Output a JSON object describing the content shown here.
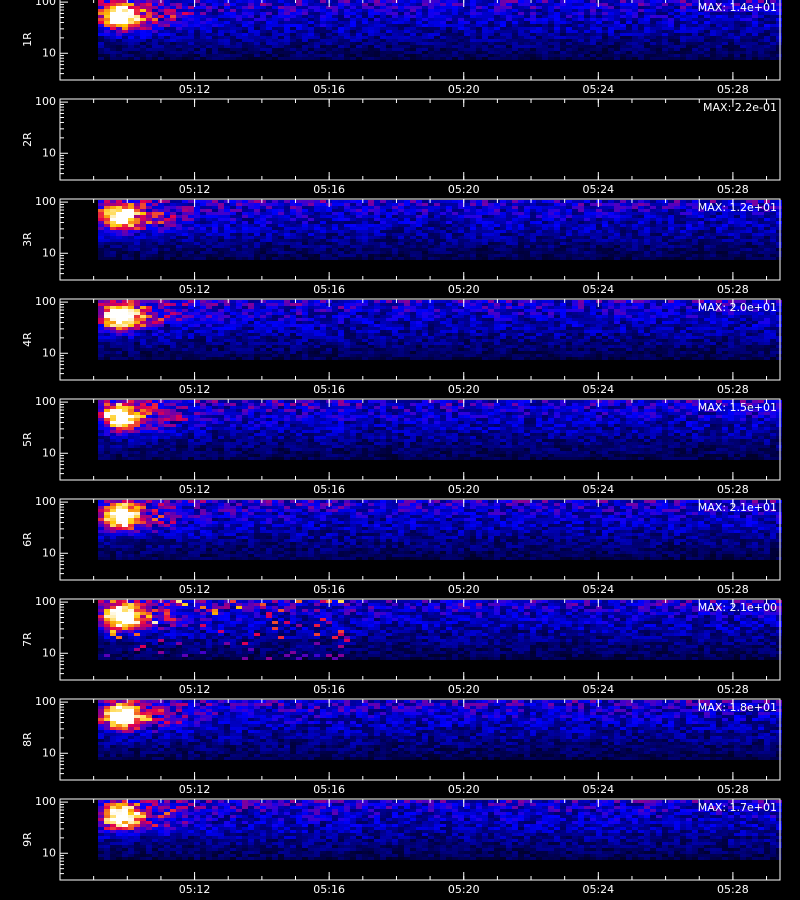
{
  "chart_data": [
    {
      "type": "heatmap",
      "ylabel": "1R",
      "annotation": "MAX: 1.4e+01",
      "log_y": true,
      "ylim": [
        3,
        115
      ],
      "yticks": [
        10,
        100
      ],
      "xlim": [
        308,
        329.4
      ],
      "xticks": [
        {
          "value": 312,
          "label": "05:12"
        },
        {
          "value": 316,
          "label": "05:16"
        },
        {
          "value": 320,
          "label": "05:20"
        },
        {
          "value": 324,
          "label": "05:24"
        },
        {
          "value": 328,
          "label": "05:28"
        }
      ]
    },
    {
      "type": "heatmap",
      "ylabel": "2R",
      "annotation": "MAX: 2.2e-01",
      "log_y": true,
      "ylim": [
        3,
        115
      ],
      "yticks": [
        10,
        100
      ],
      "xlim": [
        308,
        329.4
      ],
      "xticks": [
        {
          "value": 312,
          "label": "05:12"
        },
        {
          "value": 316,
          "label": "05:16"
        },
        {
          "value": 320,
          "label": "05:20"
        },
        {
          "value": 324,
          "label": "05:24"
        },
        {
          "value": 328,
          "label": "05:28"
        }
      ]
    },
    {
      "type": "heatmap",
      "ylabel": "3R",
      "annotation": "MAX: 1.2e+01",
      "log_y": true,
      "ylim": [
        3,
        115
      ],
      "yticks": [
        10,
        100
      ],
      "xlim": [
        308,
        329.4
      ],
      "xticks": [
        {
          "value": 312,
          "label": "05:12"
        },
        {
          "value": 316,
          "label": "05:16"
        },
        {
          "value": 320,
          "label": "05:20"
        },
        {
          "value": 324,
          "label": "05:24"
        },
        {
          "value": 328,
          "label": "05:28"
        }
      ]
    },
    {
      "type": "heatmap",
      "ylabel": "4R",
      "annotation": "MAX: 2.0e+01",
      "log_y": true,
      "ylim": [
        3,
        115
      ],
      "yticks": [
        10,
        100
      ],
      "xlim": [
        308,
        329.4
      ],
      "xticks": [
        {
          "value": 312,
          "label": "05:12"
        },
        {
          "value": 316,
          "label": "05:16"
        },
        {
          "value": 320,
          "label": "05:20"
        },
        {
          "value": 324,
          "label": "05:24"
        },
        {
          "value": 328,
          "label": "05:28"
        }
      ]
    },
    {
      "type": "heatmap",
      "ylabel": "5R",
      "annotation": "MAX: 1.5e+01",
      "log_y": true,
      "ylim": [
        3,
        115
      ],
      "yticks": [
        10,
        100
      ],
      "xlim": [
        308,
        329.4
      ],
      "xticks": [
        {
          "value": 312,
          "label": "05:12"
        },
        {
          "value": 316,
          "label": "05:16"
        },
        {
          "value": 320,
          "label": "05:20"
        },
        {
          "value": 324,
          "label": "05:24"
        },
        {
          "value": 328,
          "label": "05:28"
        }
      ]
    },
    {
      "type": "heatmap",
      "ylabel": "6R",
      "annotation": "MAX: 2.1e+01",
      "log_y": true,
      "ylim": [
        3,
        115
      ],
      "yticks": [
        10,
        100
      ],
      "xlim": [
        308,
        329.4
      ],
      "xticks": [
        {
          "value": 312,
          "label": "05:12"
        },
        {
          "value": 316,
          "label": "05:16"
        },
        {
          "value": 320,
          "label": "05:20"
        },
        {
          "value": 324,
          "label": "05:24"
        },
        {
          "value": 328,
          "label": "05:28"
        }
      ]
    },
    {
      "type": "heatmap",
      "ylabel": "7R",
      "annotation": "MAX: 2.1e+00",
      "log_y": true,
      "ylim": [
        3,
        115
      ],
      "yticks": [
        10,
        100
      ],
      "xlim": [
        308,
        329.4
      ],
      "xticks": [
        {
          "value": 312,
          "label": "05:12"
        },
        {
          "value": 316,
          "label": "05:16"
        },
        {
          "value": 320,
          "label": "05:20"
        },
        {
          "value": 324,
          "label": "05:24"
        },
        {
          "value": 328,
          "label": "05:28"
        }
      ]
    },
    {
      "type": "heatmap",
      "ylabel": "8R",
      "annotation": "MAX: 1.8e+01",
      "log_y": true,
      "ylim": [
        3,
        115
      ],
      "yticks": [
        10,
        100
      ],
      "xlim": [
        308,
        329.4
      ],
      "xticks": [
        {
          "value": 312,
          "label": "05:12"
        },
        {
          "value": 316,
          "label": "05:16"
        },
        {
          "value": 320,
          "label": "05:20"
        },
        {
          "value": 324,
          "label": "05:24"
        },
        {
          "value": 328,
          "label": "05:28"
        }
      ]
    },
    {
      "type": "heatmap",
      "ylabel": "9R",
      "annotation": "MAX: 1.7e+01",
      "log_y": true,
      "ylim": [
        3,
        115
      ],
      "yticks": [
        10,
        100
      ],
      "xlim": [
        308,
        329.4
      ],
      "xticks": [
        {
          "value": 312,
          "label": "05:12"
        },
        {
          "value": 316,
          "label": "05:16"
        },
        {
          "value": 320,
          "label": "05:20"
        },
        {
          "value": 324,
          "label": "05:24"
        },
        {
          "value": 328,
          "label": "05:28"
        }
      ]
    }
  ]
}
